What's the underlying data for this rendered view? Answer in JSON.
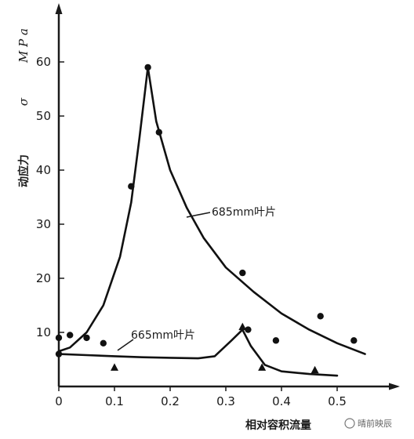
{
  "chart_data": {
    "type": "line",
    "title": "",
    "xlabel": "相对容积流量",
    "ylabel_prefix": "动应力",
    "ylabel_symbol": "σ",
    "ylabel_unit": "M P a",
    "xlim": [
      0,
      0.58
    ],
    "ylim": [
      0,
      67
    ],
    "x_ticks": [
      0,
      0.1,
      0.2,
      0.3,
      0.4,
      0.5
    ],
    "x_tick_labels": [
      "0",
      "0.1",
      "0.2",
      "0.3",
      "0.4",
      "0.5"
    ],
    "y_ticks": [
      10,
      20,
      30,
      40,
      50,
      60
    ],
    "y_tick_labels": [
      "10",
      "20",
      "30",
      "40",
      "50",
      "60"
    ],
    "grid": false,
    "series": [
      {
        "name": "685mm叶片",
        "curve": [
          [
            0.0,
            6.5
          ],
          [
            0.02,
            7.2
          ],
          [
            0.05,
            10.0
          ],
          [
            0.08,
            15.0
          ],
          [
            0.11,
            24.0
          ],
          [
            0.13,
            34.0
          ],
          [
            0.145,
            46.0
          ],
          [
            0.16,
            59.0
          ],
          [
            0.175,
            49.0
          ],
          [
            0.2,
            40.0
          ],
          [
            0.23,
            33.0
          ],
          [
            0.26,
            27.5
          ],
          [
            0.3,
            22.0
          ],
          [
            0.35,
            17.5
          ],
          [
            0.4,
            13.5
          ],
          [
            0.45,
            10.5
          ],
          [
            0.5,
            8.0
          ],
          [
            0.55,
            6.0
          ]
        ],
        "points": [
          [
            0.0,
            6.0
          ],
          [
            0.0,
            9.0
          ],
          [
            0.02,
            9.5
          ],
          [
            0.05,
            9.0
          ],
          [
            0.08,
            8.0
          ],
          [
            0.13,
            37.0
          ],
          [
            0.16,
            59.0
          ],
          [
            0.18,
            47.0
          ],
          [
            0.33,
            21.0
          ],
          [
            0.34,
            10.5
          ],
          [
            0.39,
            8.5
          ],
          [
            0.47,
            13.0
          ],
          [
            0.53,
            8.5
          ]
        ],
        "marker": "circle"
      },
      {
        "name": "665mm叶片",
        "curve": [
          [
            0.0,
            6.0
          ],
          [
            0.05,
            5.8
          ],
          [
            0.1,
            5.6
          ],
          [
            0.15,
            5.4
          ],
          [
            0.2,
            5.3
          ],
          [
            0.25,
            5.2
          ],
          [
            0.28,
            5.6
          ],
          [
            0.31,
            8.5
          ],
          [
            0.33,
            10.5
          ],
          [
            0.345,
            7.5
          ],
          [
            0.37,
            4.0
          ],
          [
            0.4,
            2.8
          ],
          [
            0.45,
            2.3
          ],
          [
            0.5,
            2.0
          ]
        ],
        "points": [
          [
            0.1,
            3.5
          ],
          [
            0.33,
            11.0
          ],
          [
            0.365,
            3.5
          ],
          [
            0.46,
            3.0
          ]
        ],
        "marker": "triangle"
      }
    ]
  },
  "watermark": "晴前映辰"
}
